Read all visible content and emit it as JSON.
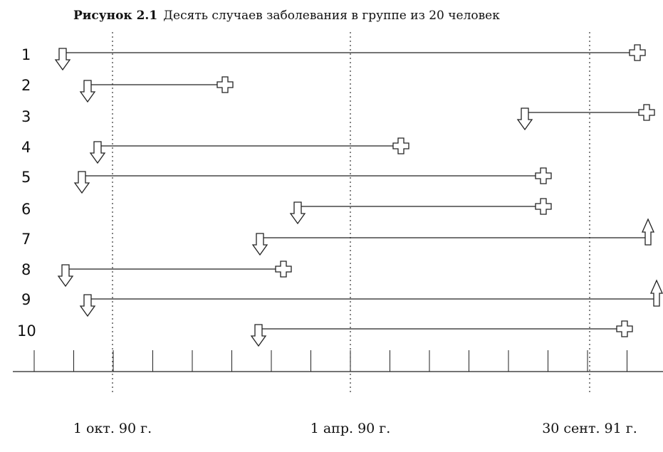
{
  "title": {
    "number": "Рисунок 2.1",
    "text": "Десять случаев заболевания в группе из 20 человек"
  },
  "rows": [
    "1",
    "2",
    "3",
    "4",
    "5",
    "6",
    "7",
    "8",
    "9",
    "10"
  ],
  "dates": [
    "1 окт. 90 г.",
    "1 апр. 90 г.",
    "30 сент. 91 г."
  ]
}
